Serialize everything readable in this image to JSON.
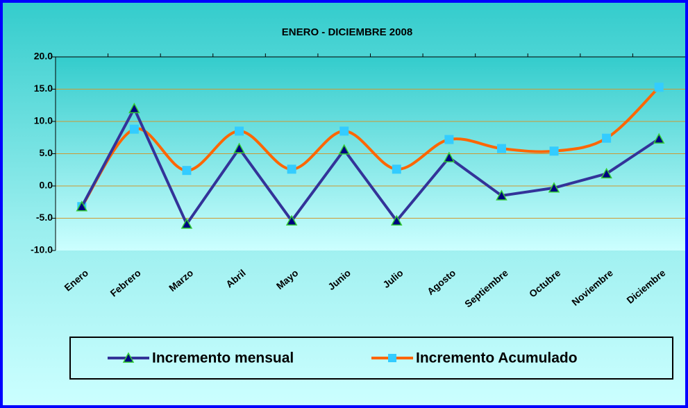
{
  "chart_data": {
    "type": "line",
    "title": "ENERO - DICIEMBRE 2008",
    "categories": [
      "Enero",
      "Febrero",
      "Marzo",
      "Abril",
      "Mayo",
      "Junio",
      "Julio",
      "Agosto",
      "Septiembre",
      "Octubre",
      "Noviembre",
      "Diciembre"
    ],
    "series": [
      {
        "name": "Incremento mensual",
        "color": "#333399",
        "marker_color": "#000080",
        "marker_edge": "#33cc33",
        "smooth": false,
        "marker": "triangle",
        "values": [
          -3.2,
          12.0,
          -5.9,
          5.8,
          -5.4,
          5.6,
          -5.4,
          4.4,
          -1.5,
          -0.3,
          1.9,
          7.3
        ]
      },
      {
        "name": "Incremento Acumulado",
        "color": "#ff6600",
        "marker_color": "#33ccff",
        "marker_edge": "#33ccff",
        "smooth": true,
        "marker": "square",
        "values": [
          -3.2,
          8.8,
          2.4,
          8.5,
          2.6,
          8.5,
          2.6,
          7.2,
          5.8,
          5.4,
          7.4,
          15.3
        ]
      }
    ],
    "ylim": [
      -10,
      20
    ],
    "yticks": [
      {
        "value": -10,
        "label": "-10.0"
      },
      {
        "value": -5,
        "label": "-5.0"
      },
      {
        "value": 0,
        "label": "0.0"
      },
      {
        "value": 5,
        "label": "5.0"
      },
      {
        "value": 10,
        "label": "10.0"
      },
      {
        "value": 15,
        "label": "15.0"
      },
      {
        "value": 20,
        "label": "20.0"
      }
    ],
    "grid": true,
    "grid_color": "#cc9933",
    "legend": "bottom"
  }
}
